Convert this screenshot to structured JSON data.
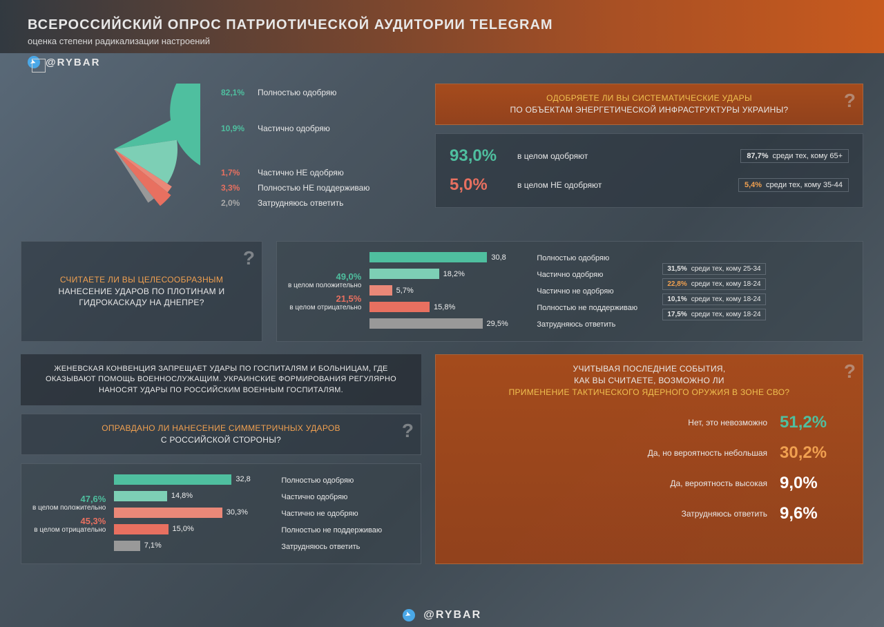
{
  "header": {
    "title": "ВСЕРОССИЙСКИЙ ОПРОС ПАТРИОТИЧЕСКОЙ АУДИТОРИИ TELEGRAM",
    "subtitle": "оценка степени радикализации настроений"
  },
  "brand": "@RYBAR",
  "colors": {
    "green": "#4FBF9F",
    "green_light": "#7dcfb5",
    "red": "#e87060",
    "red_light": "#ea8878",
    "gray": "#999999",
    "orange": "#f0a050"
  },
  "pie": {
    "slices": [
      {
        "pct": "82,1%",
        "label": "Полностью одобряю",
        "color": "#4FBF9F",
        "angle": 295.6
      },
      {
        "pct": "10,9%",
        "label": "Частично одобряю",
        "color": "#7dcfb5",
        "angle": 39.2
      },
      {
        "pct": "1,7%",
        "label": "Частично НЕ одобряю",
        "color": "#ea8878",
        "angle": 6.1
      },
      {
        "pct": "3,3%",
        "label": "Полностью НЕ поддерживаю",
        "color": "#e87060",
        "angle": 11.9
      },
      {
        "pct": "2,0%",
        "label": "Затрудняюсь ответить",
        "color": "#999999",
        "angle": 7.2
      }
    ]
  },
  "q1": {
    "title_pre": "ОДОБРЯЕТЕ ЛИ ВЫ СИСТЕМАТИЧЕСКИЕ УДАРЫ",
    "title_post": "ПО ОБЪЕКТАМ ЭНЕРГЕТИЧЕСКОЙ ИНФРАСТРУКТУРЫ УКРАИНЫ?",
    "approve_pct": "93,0%",
    "approve_label": "в целом одобряют",
    "approve_sub_pct": "87,7%",
    "approve_sub_label": "среди тех, кому 65+",
    "disapprove_pct": "5,0%",
    "disapprove_label": "в целом НЕ одобряют",
    "disapprove_sub_pct": "5,4%",
    "disapprove_sub_label": "среди тех, кому 35-44"
  },
  "q2": {
    "title_pre": "СЧИТАЕТЕ ЛИ ВЫ ЦЕЛЕСООБРАЗНЫМ",
    "title_post": "НАНЕСЕНИЕ УДАРОВ ПО ПЛОТИНАМ И ГИДРОКАСКАДУ НА ДНЕПРЕ?",
    "pos_pct": "49,0%",
    "pos_label": "в целом положительно",
    "neg_pct": "21,5%",
    "neg_label": "в целом отрицательно",
    "bars": [
      {
        "val": "30,8",
        "width": 100,
        "label": "Полностью одобряю",
        "cls": "g1",
        "sub_pct": "31,5%",
        "sub_lbl": "среди тех, кому 25-34",
        "sub_cls": ""
      },
      {
        "val": "18,2%",
        "width": 59,
        "label": "Частично одобряю",
        "cls": "g2",
        "sub_pct": "22,8%",
        "sub_lbl": "среди тех, кому 18-24",
        "sub_cls": "orange"
      },
      {
        "val": "5,7%",
        "width": 19,
        "label": "Частично не одобряю",
        "cls": "r2",
        "sub_pct": "10,1%",
        "sub_lbl": "среди тех, кому 18-24",
        "sub_cls": ""
      },
      {
        "val": "15,8%",
        "width": 51,
        "label": "Полностью не поддерживаю",
        "cls": "r1",
        "sub_pct": "17,5%",
        "sub_lbl": "среди тех, кому 18-24",
        "sub_cls": ""
      },
      {
        "val": "29,5%",
        "width": 96,
        "label": "Затрудняюсь ответить",
        "cls": "gr"
      }
    ]
  },
  "q3": {
    "intro": "ЖЕНЕВСКАЯ КОНВЕНЦИЯ ЗАПРЕЩАЕТ УДАРЫ ПО ГОСПИТАЛЯМ И БОЛЬНИЦАМ, ГДЕ ОКАЗЫВАЮТ ПОМОЩЬ ВОЕННОСЛУЖАЩИМ. УКРАИНСКИЕ ФОРМИРОВАНИЯ РЕГУЛЯРНО НАНОСЯТ УДАРЫ ПО РОССИЙСКИМ ВОЕННЫМ ГОСПИТАЛЯМ.",
    "title_pre": "ОПРАВДАНО ЛИ НАНЕСЕНИЕ СИММЕТРИЧНЫХ УДАРОВ",
    "title_post": "С РОССИЙСКОЙ СТОРОНЫ?",
    "pos_pct": "47,6%",
    "pos_label": "в целом положительно",
    "neg_pct": "45,3%",
    "neg_label": "в целом отрицательно",
    "bars": [
      {
        "val": "32,8",
        "width": 100,
        "label": "Полностью одобряю",
        "cls": "g1"
      },
      {
        "val": "14,8%",
        "width": 45,
        "label": "Частично одобряю",
        "cls": "g2"
      },
      {
        "val": "30,3%",
        "width": 92,
        "label": "Частично не одобряю",
        "cls": "r2"
      },
      {
        "val": "15,0%",
        "width": 46,
        "label": "Полностью не поддерживаю",
        "cls": "r1"
      },
      {
        "val": "7,1%",
        "width": 22,
        "label": "Затрудняюсь ответить",
        "cls": "gr"
      }
    ]
  },
  "q4": {
    "title_l1": "УЧИТЫВАЯ ПОСЛЕДНИЕ СОБЫТИЯ,",
    "title_l2": "КАК ВЫ СЧИТАЕТЕ, ВОЗМОЖНО ЛИ",
    "title_hl": "ПРИМЕНЕНИЕ ТАКТИЧЕСКОГО ЯДЕРНОГО ОРУЖИЯ В ЗОНЕ СВО?",
    "rows": [
      {
        "label": "Нет, это невозможно",
        "val": "51,2%",
        "cls": "green"
      },
      {
        "label": "Да, но вероятность небольшая",
        "val": "30,2%",
        "cls": "orange"
      },
      {
        "label": "Да, вероятность высокая",
        "val": "9,0%",
        "cls": "white"
      },
      {
        "label": "Затрудняюсь ответить",
        "val": "9,6%",
        "cls": "white"
      }
    ]
  }
}
